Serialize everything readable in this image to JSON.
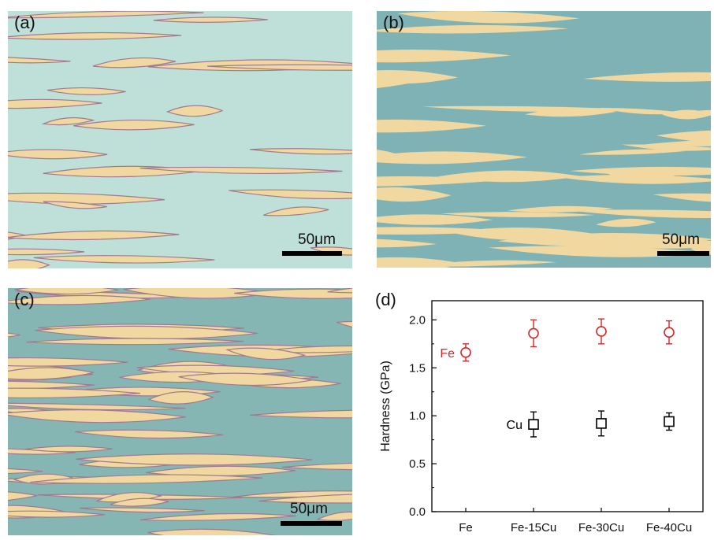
{
  "panels": [
    {
      "label": "(a)",
      "scale_bar": "50μm"
    },
    {
      "label": "(b)",
      "scale_bar": "50μm"
    },
    {
      "label": "(c)",
      "scale_bar": "50μm"
    }
  ],
  "colors": {
    "matrix_a": "#bfe0d8",
    "matrix_b": "#7fb2b4",
    "matrix_c": "#86b6b3",
    "lamella": "#f0d8a0",
    "fe": "#d62728",
    "cu": "#000000"
  },
  "chart_data": {
    "type": "scatter",
    "panel_label": "(d)",
    "categories": [
      "Fe",
      "Fe-15Cu",
      "Fe-30Cu",
      "Fe-40Cu"
    ],
    "ylabel": "Hardness (GPa)",
    "xlabel": "",
    "ylim": [
      0.0,
      2.2
    ],
    "yticks": [
      "0.0",
      "0.5",
      "1.0",
      "1.5",
      "2.0"
    ],
    "series": [
      {
        "name": "Fe",
        "marker": "circle",
        "color": "#d62728",
        "values": [
          1.66,
          1.86,
          1.88,
          1.87
        ],
        "errors": [
          0.09,
          0.14,
          0.13,
          0.12
        ]
      },
      {
        "name": "Cu",
        "marker": "square",
        "color": "#000000",
        "values": [
          null,
          0.91,
          0.92,
          0.94
        ],
        "errors": [
          null,
          0.13,
          0.13,
          0.09
        ]
      }
    ]
  }
}
